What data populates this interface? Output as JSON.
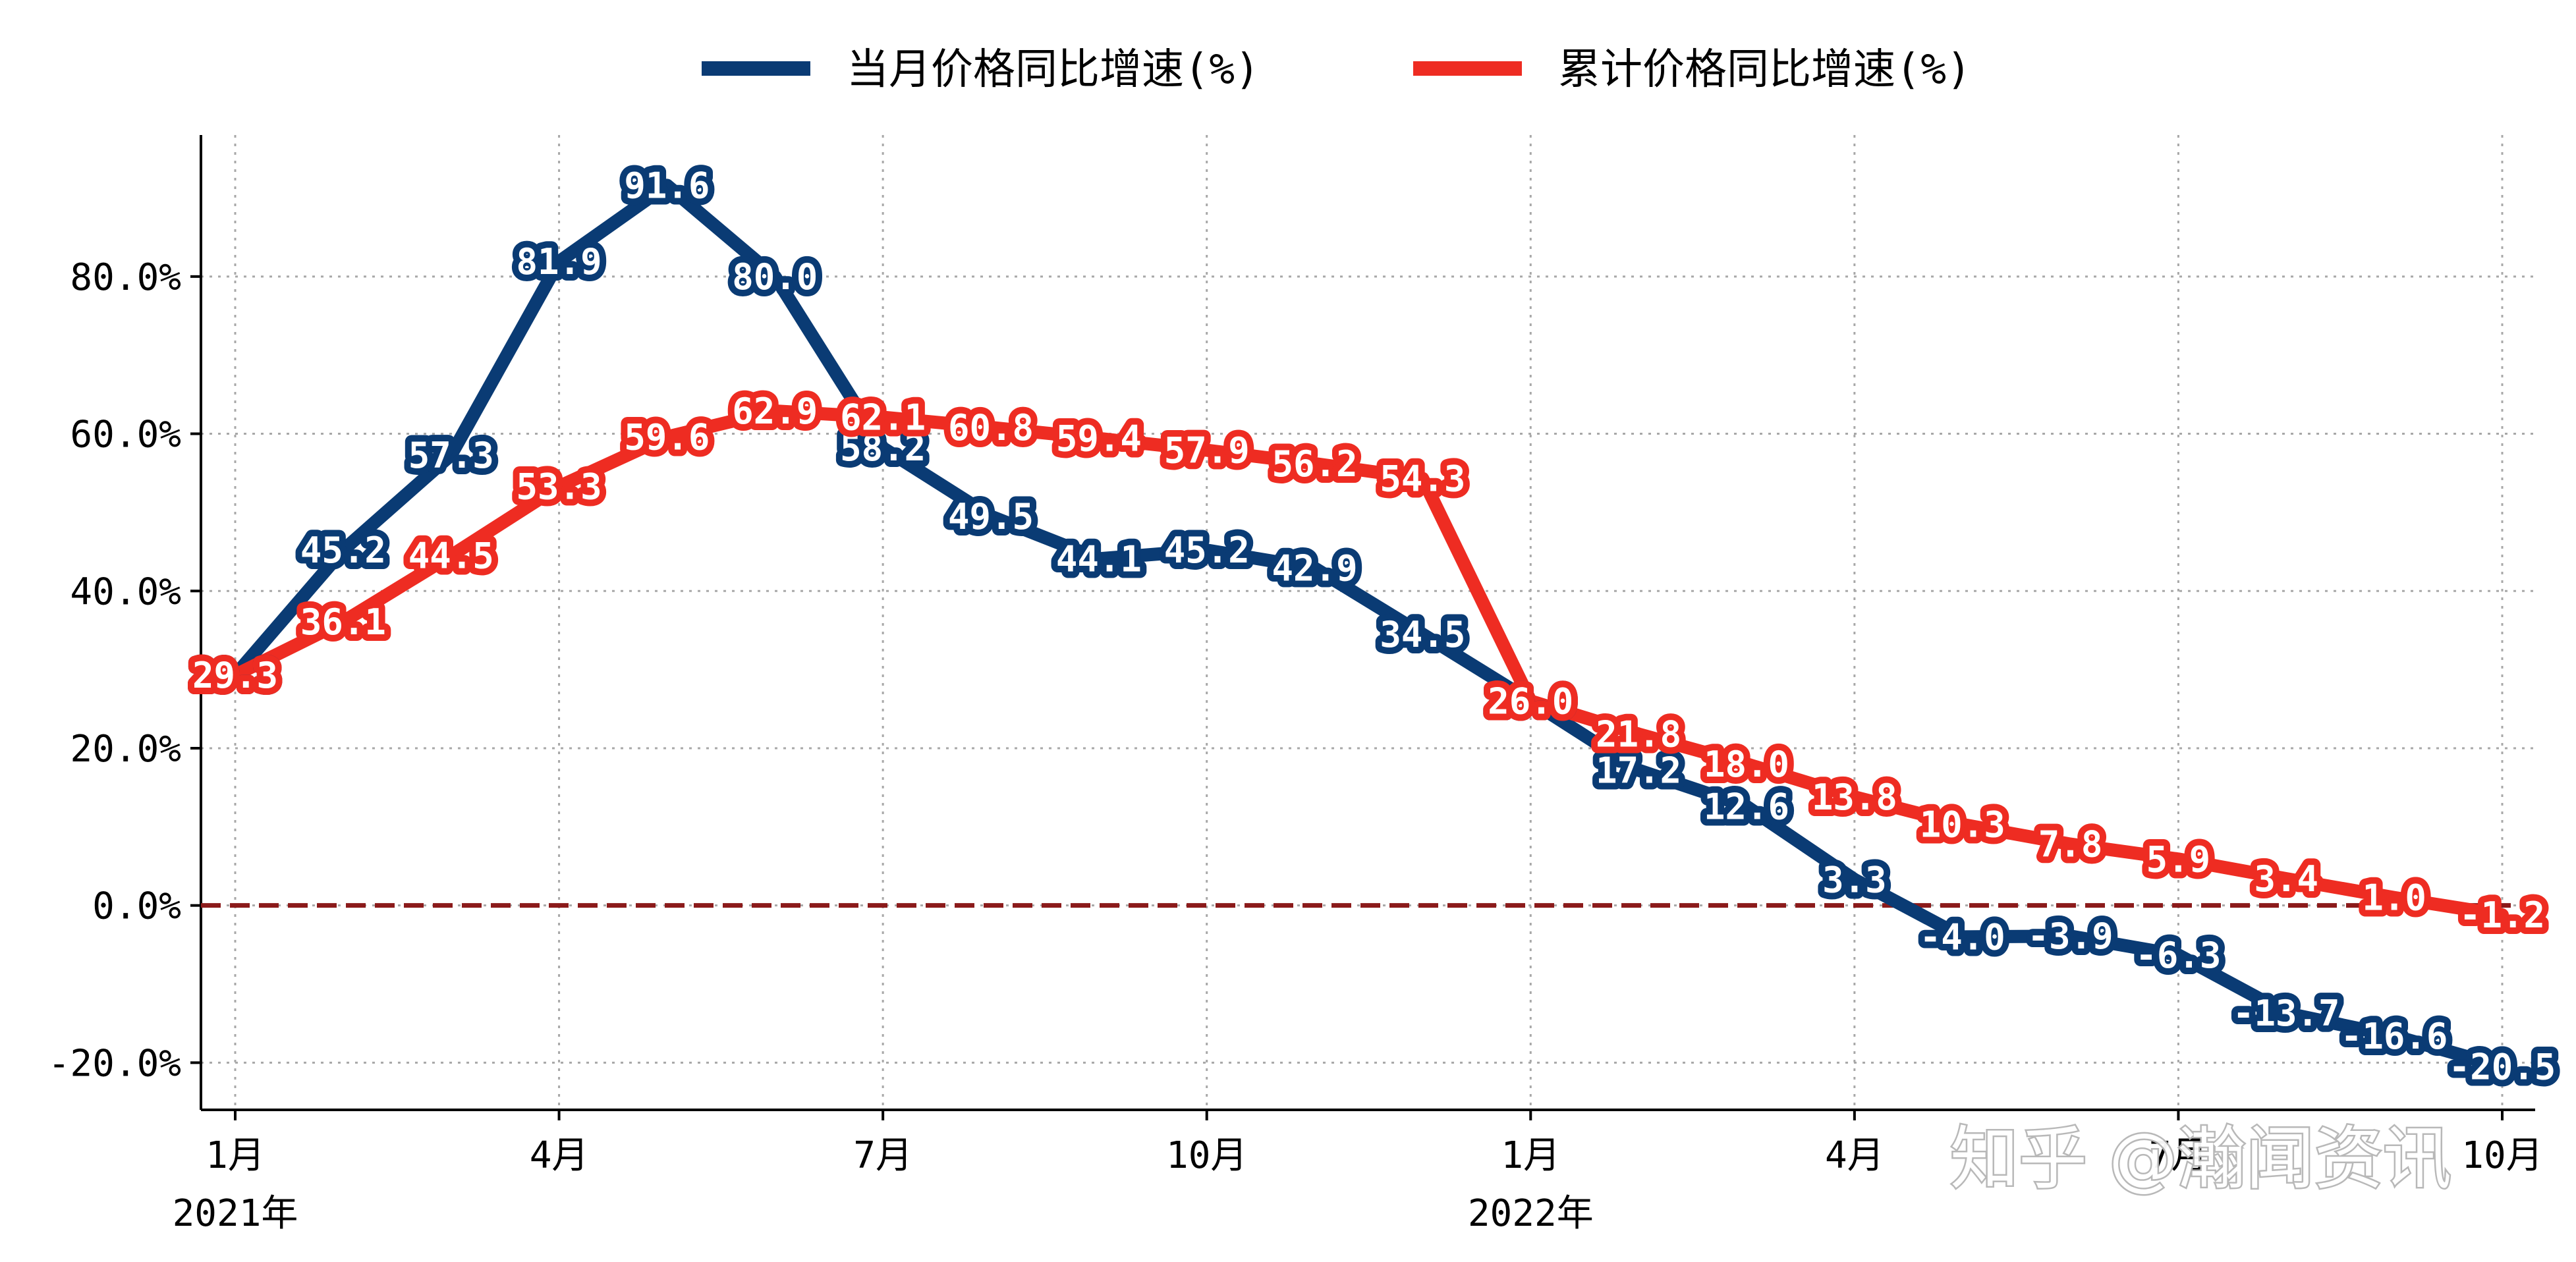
{
  "chart_data": {
    "type": "line",
    "title": "",
    "xlabel": "",
    "ylabel": "",
    "ylim": [
      -26,
      98
    ],
    "yticks": [
      -20,
      0,
      20,
      40,
      60,
      80
    ],
    "ytick_labels": [
      "-20.0%",
      "0.0%",
      "20.0%",
      "40.0%",
      "60.0%",
      "80.0%"
    ],
    "x_tick_positions": [
      0,
      3,
      6,
      9,
      12,
      15,
      18,
      21
    ],
    "x_tick_labels": [
      "1月",
      "4月",
      "7月",
      "10月",
      "1月",
      "4月",
      "7月",
      "10月"
    ],
    "x_year_labels": [
      {
        "index": 0,
        "text": "2021年"
      },
      {
        "index": 12,
        "text": "2022年"
      }
    ],
    "x": [
      0,
      1,
      2,
      3,
      4,
      5,
      6,
      7,
      8,
      9,
      10,
      11,
      12,
      13,
      14,
      15,
      16,
      17,
      18,
      19,
      20,
      21
    ],
    "reference_line": {
      "y": 0,
      "color": "#8b1a1a"
    },
    "grid": true,
    "legend_position": "top-center",
    "series": [
      {
        "name": "当月价格同比增速(%)",
        "color": "#0a3b74",
        "values": [
          29.3,
          45.2,
          57.3,
          81.9,
          91.6,
          80.0,
          58.2,
          49.5,
          44.1,
          45.2,
          42.9,
          34.5,
          26.0,
          17.2,
          12.6,
          3.3,
          -4.0,
          -3.9,
          -6.3,
          -13.7,
          -16.6,
          -20.5
        ],
        "labels": [
          "29.3",
          "45.2",
          "57.3",
          "81.9",
          "91.6",
          "80.0",
          "58.2",
          "49.5",
          "44.1",
          "45.2",
          "42.9",
          "34.5",
          "26.0",
          "17.2",
          "12.6",
          "3.3",
          "-4.0",
          "-3.9",
          "-6.3",
          "-13.7",
          "-16.6",
          "-20.5"
        ]
      },
      {
        "name": "累计价格同比增速(%)",
        "color": "#ee2c22",
        "values": [
          29.3,
          36.1,
          44.5,
          53.3,
          59.6,
          62.9,
          62.1,
          60.8,
          59.4,
          57.9,
          56.2,
          54.3,
          26.0,
          21.8,
          18.0,
          13.8,
          10.3,
          7.8,
          5.9,
          3.4,
          1.0,
          -1.2
        ],
        "labels": [
          "29.3",
          "36.1",
          "44.5",
          "53.3",
          "59.6",
          "62.9",
          "62.1",
          "60.8",
          "59.4",
          "57.9",
          "56.2",
          "54.3",
          "26.0",
          "21.8",
          "18.0",
          "13.8",
          "10.3",
          "7.8",
          "5.9",
          "3.4",
          "1.0",
          "-1.2"
        ]
      }
    ]
  },
  "watermark": "知乎 @瀚闻资讯"
}
